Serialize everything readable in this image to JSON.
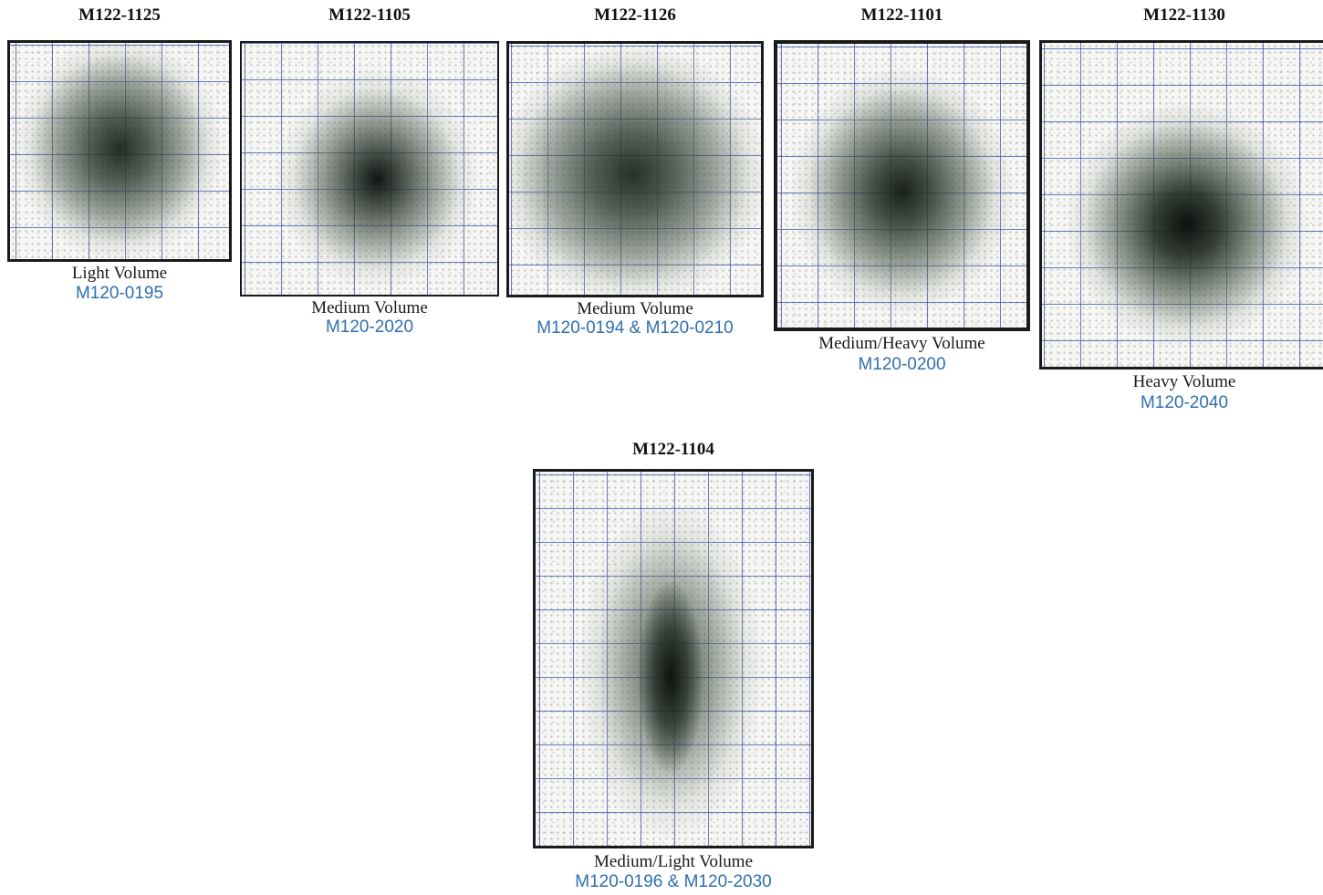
{
  "panels": [
    {
      "title": "M122-1125",
      "volume": "Light Volume",
      "parts": "M120-0195"
    },
    {
      "title": "M122-1105",
      "volume": "Medium Volume",
      "parts": "M120-2020"
    },
    {
      "title": "M122-1126",
      "volume": "Medium Volume",
      "parts": "M120-0194 & M120-0210"
    },
    {
      "title": "M122-1101",
      "volume": "Medium/Heavy Volume",
      "parts": "M120-0200"
    },
    {
      "title": "M122-1130",
      "volume": "Heavy Volume",
      "parts": "M120-2040"
    },
    {
      "title": "M122-1104",
      "volume": "Medium/Light Volume",
      "parts": "M120-0196 & M120-2030"
    }
  ],
  "colors": {
    "title": "#111111",
    "volume_text": "#1a1a1a",
    "part_number": "#2e6fb0",
    "grid_line": "#3c50aa",
    "spray_core": "#1f2a22",
    "frame": "#1a1a1a"
  }
}
